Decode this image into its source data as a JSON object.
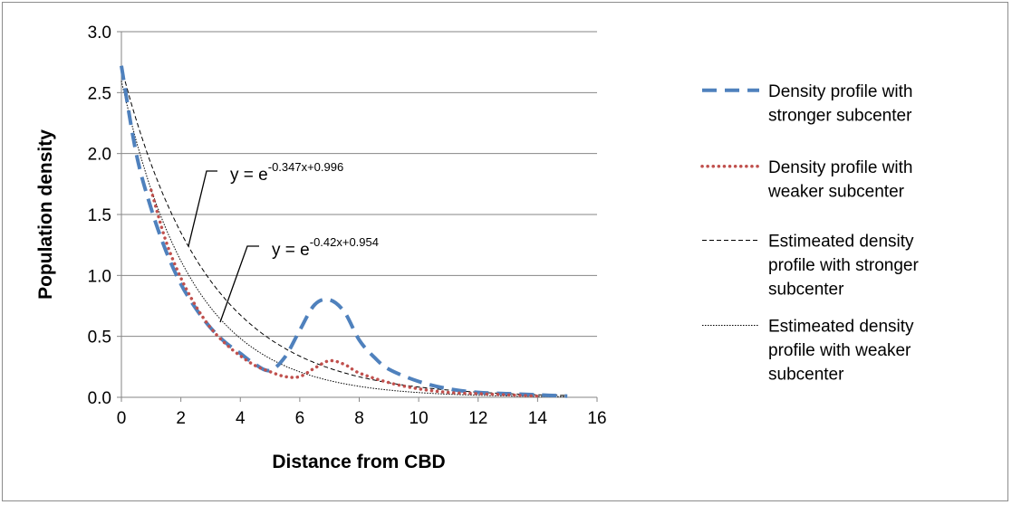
{
  "chart_data": {
    "type": "line",
    "title": "",
    "xlabel": "Distance from CBD",
    "ylabel": "Population density",
    "xlim": [
      0,
      16
    ],
    "ylim": [
      0,
      3.0
    ],
    "xticks": [
      "0",
      "2",
      "4",
      "6",
      "8",
      "10",
      "12",
      "14",
      "16"
    ],
    "yticks": [
      "0.0",
      "0.5",
      "1.0",
      "1.5",
      "2.0",
      "2.5",
      "3.0"
    ],
    "grid": "horizontal",
    "legend_position": "right",
    "series": [
      {
        "name": "Density profile with stronger subcenter",
        "legend_lines": [
          "Density profile with",
          "stronger subcenter"
        ],
        "color": "#4f81bd",
        "style": "long-dash",
        "x": [
          0,
          0.5,
          1,
          1.5,
          2,
          2.5,
          3,
          3.5,
          4,
          4.5,
          5,
          5.5,
          6,
          6.5,
          7,
          7.5,
          8,
          8.5,
          9,
          10,
          11,
          12,
          13,
          14,
          15
        ],
        "y": [
          2.72,
          2.0,
          1.55,
          1.2,
          0.93,
          0.73,
          0.57,
          0.45,
          0.36,
          0.27,
          0.22,
          0.33,
          0.55,
          0.76,
          0.8,
          0.7,
          0.47,
          0.33,
          0.23,
          0.13,
          0.07,
          0.04,
          0.03,
          0.02,
          0.01
        ]
      },
      {
        "name": "Density profile with weaker subcenter",
        "legend_lines": [
          "Density profile with",
          "weaker subcenter"
        ],
        "color": "#c0504d",
        "style": "dotted",
        "x": [
          1,
          1.5,
          2,
          2.5,
          3,
          3.5,
          4,
          4.5,
          5,
          5.5,
          6,
          6.5,
          7,
          7.5,
          8,
          9,
          10,
          11,
          12,
          13,
          14
        ],
        "y": [
          1.7,
          1.28,
          0.98,
          0.75,
          0.57,
          0.44,
          0.34,
          0.26,
          0.21,
          0.17,
          0.17,
          0.24,
          0.3,
          0.27,
          0.2,
          0.12,
          0.07,
          0.04,
          0.03,
          0.02,
          0.01
        ]
      },
      {
        "name": "Estimeated density profile with stronger subcenter",
        "legend_lines": [
          "Estimeated density",
          "profile with stronger",
          "subcenter"
        ],
        "color": "#000000",
        "style": "dashed"
      },
      {
        "name": "Estimeated density profile with weaker subcenter",
        "legend_lines": [
          "Estimeated density",
          "profile with weaker",
          "subcenter"
        ],
        "color": "#000000",
        "style": "fine-dotted"
      }
    ],
    "trendlines": [
      {
        "series": "Estimeated density profile with stronger subcenter",
        "equation_prefix": "y = e",
        "exponent": "-0.347x+0.996",
        "slope": -0.347,
        "intercept": 0.996,
        "x_range": [
          0,
          15
        ]
      },
      {
        "series": "Estimeated density profile with weaker subcenter",
        "equation_prefix": "y = e",
        "exponent": "-0.42x+0.954",
        "slope": -0.42,
        "intercept": 0.954,
        "x_range": [
          0,
          15
        ]
      }
    ]
  }
}
